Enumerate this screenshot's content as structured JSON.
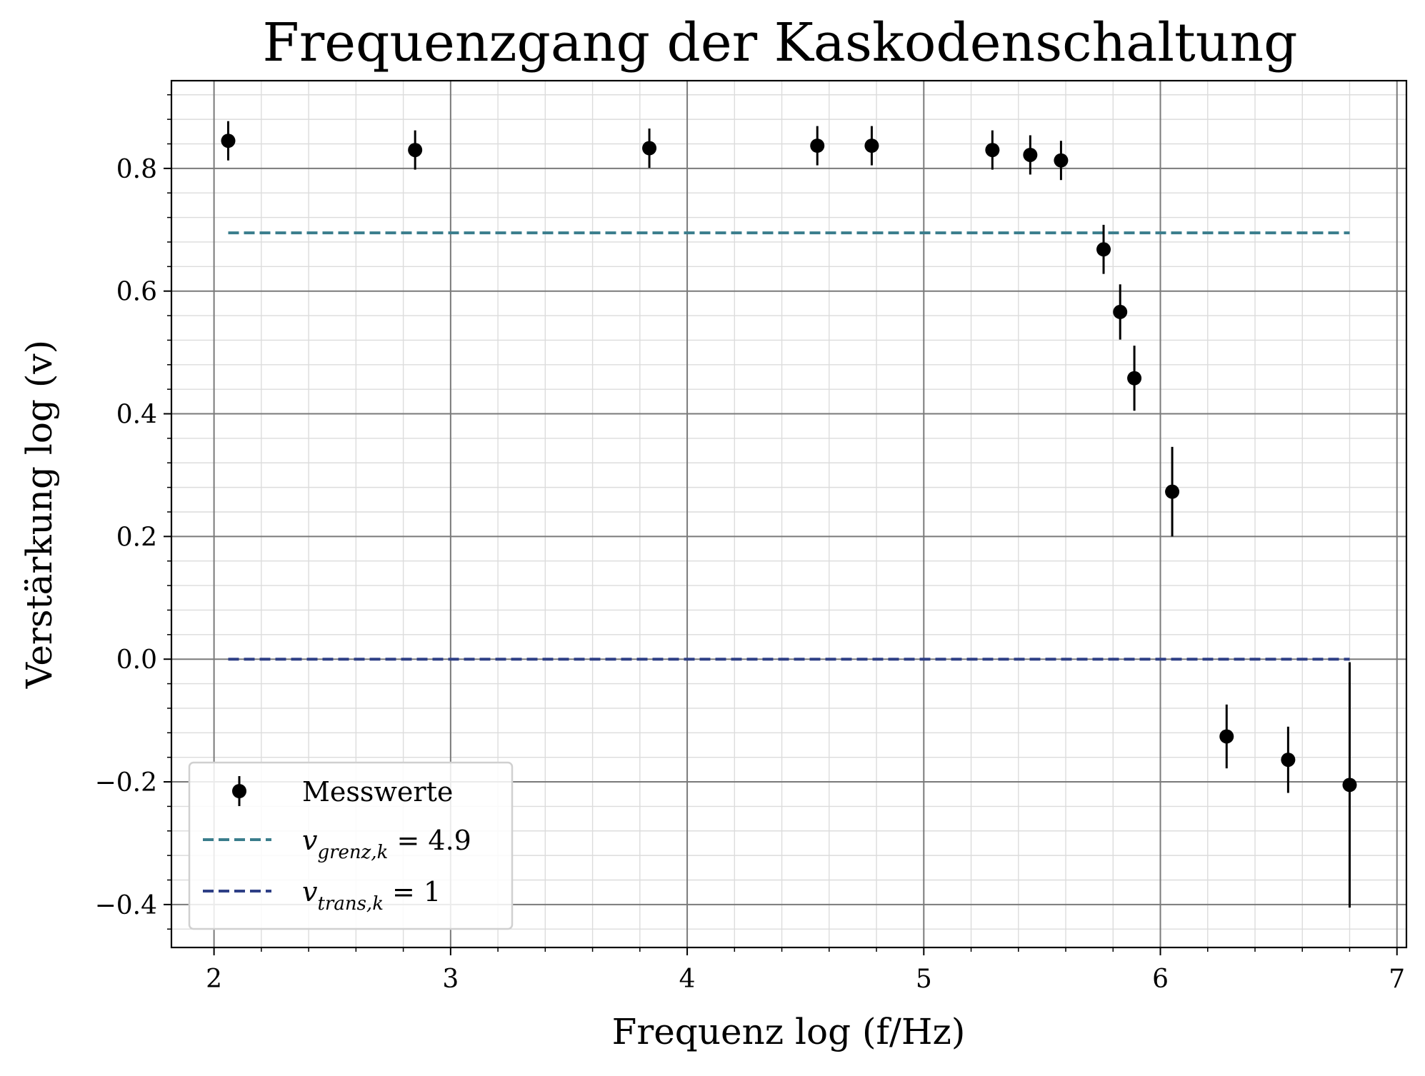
{
  "chart_data": {
    "type": "scatter",
    "title": "Frequenzgang der Kaskodenschaltung",
    "xlabel": "Frequenz log (f/Hz)",
    "ylabel": "Verstärkung log (v)",
    "xlim": [
      1.82,
      7.04
    ],
    "ylim": [
      -0.47,
      0.943
    ],
    "xticks": [
      "2",
      "3",
      "4",
      "5",
      "6",
      "7"
    ],
    "xtick_values": [
      2,
      3,
      4,
      5,
      6,
      7
    ],
    "yticks": [
      "−0.4",
      "−0.2",
      "0.0",
      "0.2",
      "0.4",
      "0.6",
      "0.8"
    ],
    "ytick_values": [
      -0.4,
      -0.2,
      0.0,
      0.2,
      0.4,
      0.6,
      0.8
    ],
    "grid": {
      "major": true,
      "minor": true
    },
    "legend_position": "lower-left",
    "series": [
      {
        "name": "Messwerte",
        "kind": "errorbar",
        "color": "#000000",
        "points": [
          {
            "x": 2.06,
            "y": 0.845,
            "err": 0.032
          },
          {
            "x": 2.85,
            "y": 0.83,
            "err": 0.032
          },
          {
            "x": 3.84,
            "y": 0.833,
            "err": 0.032
          },
          {
            "x": 4.55,
            "y": 0.837,
            "err": 0.032
          },
          {
            "x": 4.78,
            "y": 0.837,
            "err": 0.032
          },
          {
            "x": 5.29,
            "y": 0.83,
            "err": 0.032
          },
          {
            "x": 5.45,
            "y": 0.822,
            "err": 0.032
          },
          {
            "x": 5.58,
            "y": 0.813,
            "err": 0.032
          },
          {
            "x": 5.76,
            "y": 0.668,
            "err": 0.04
          },
          {
            "x": 5.83,
            "y": 0.566,
            "err": 0.045
          },
          {
            "x": 5.89,
            "y": 0.458,
            "err": 0.053
          },
          {
            "x": 6.05,
            "y": 0.273,
            "err": 0.073
          },
          {
            "x": 6.28,
            "y": -0.126,
            "err": 0.052
          },
          {
            "x": 6.54,
            "y": -0.164,
            "err": 0.054
          },
          {
            "x": 6.8,
            "y": -0.205,
            "err": 0.2
          }
        ]
      },
      {
        "name_main": "v",
        "name_sub": "grenz,k",
        "name_rest": " = 4.9",
        "kind": "hline",
        "color": "#3a7d8c",
        "y": 0.695,
        "x_range": [
          2.06,
          6.8
        ]
      },
      {
        "name_main": "v",
        "name_sub": "trans,k",
        "name_rest": " = 1",
        "kind": "hline",
        "color": "#2e3f86",
        "y": 0.0,
        "x_range": [
          2.06,
          6.8
        ]
      }
    ]
  }
}
